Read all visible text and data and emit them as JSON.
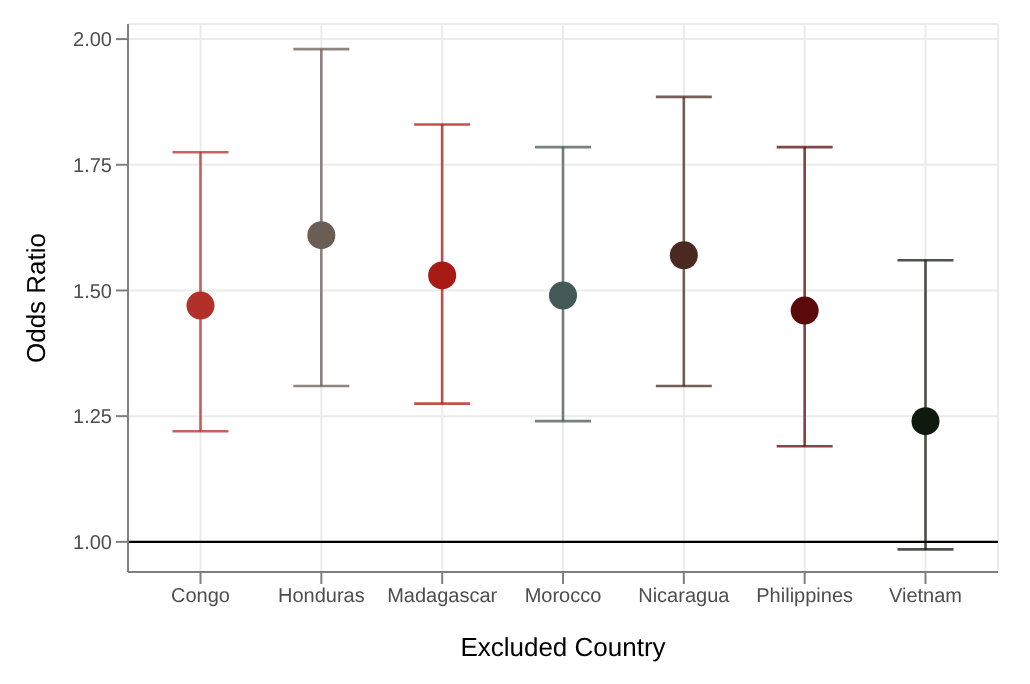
{
  "chart_data": {
    "type": "scatter",
    "xlabel": "Excluded Country",
    "ylabel": "Odds Ratio",
    "categories": [
      "Congo",
      "Honduras",
      "Madagascar",
      "Morocco",
      "Nicaragua",
      "Philippines",
      "Vietnam"
    ],
    "values": [
      1.47,
      1.61,
      1.53,
      1.49,
      1.57,
      1.46,
      1.24
    ],
    "errors": [
      [
        1.22,
        1.775
      ],
      [
        1.31,
        1.98
      ],
      [
        1.275,
        1.83
      ],
      [
        1.24,
        1.785
      ],
      [
        1.31,
        1.885
      ],
      [
        1.19,
        1.785
      ],
      [
        0.985,
        1.56
      ]
    ],
    "colors": [
      "#b2302a",
      "#6b5e55",
      "#a81a14",
      "#455858",
      "#4a2a20",
      "#5a0a0a",
      "#0f1a0f"
    ],
    "ylim": [
      0.94,
      2.03
    ],
    "yticks": [
      {
        "value": 1,
        "label": "1.00"
      },
      {
        "value": 1.25,
        "label": "1.25"
      },
      {
        "value": 1.5,
        "label": "1.50"
      },
      {
        "value": 1.75,
        "label": "1.75"
      },
      {
        "value": 2,
        "label": "2.00"
      }
    ],
    "ref_lines": [
      {
        "axis": "y",
        "value": 1,
        "label": null,
        "color": "#000000"
      }
    ],
    "grid": true,
    "marker": "circle"
  }
}
